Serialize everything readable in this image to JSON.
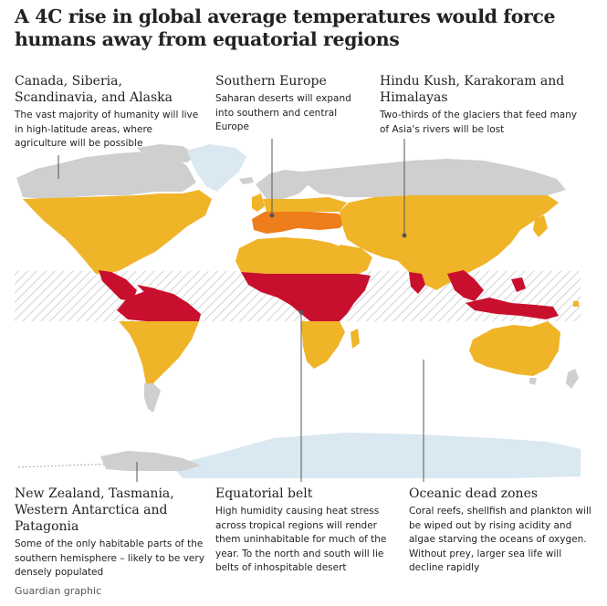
{
  "title": "A 4C rise in global average temperatures would force humans away from equatorial regions",
  "annotations": {
    "north_high_latitudes": {
      "heading": "Canada, Siberia, Scandinavia, and Alaska",
      "body": "The vast majority of humanity will live in high-latitude areas, where agriculture will be possible"
    },
    "southern_europe": {
      "heading": "Southern Europe",
      "body": "Saharan deserts will expand into southern and central Europe"
    },
    "himalayas": {
      "heading": "Hindu Kush, Karakoram and Himalayas",
      "body": "Two-thirds of the glaciers that feed many of Asia's rivers will be lost"
    },
    "southern_refuges": {
      "heading": "New Zealand, Tasmania, Western Antarctica and Patagonia",
      "body": "Some of the only habitable parts of the southern hemisphere – likely to be very densely populated"
    },
    "equatorial_belt": {
      "heading": "Equatorial belt",
      "body": "High humidity causing heat stress across tropical regions will render them uninhabitable for much of the year. To the north and south will lie belts of inhospitable desert"
    },
    "oceanic_dead_zones": {
      "heading": "Oceanic dead zones",
      "body": "Coral reefs, shellfish and plankton will be wiped out by rising acidity and algae starving the oceans of oxygen. Without prey, larger sea life will decline rapidly"
    }
  },
  "credit": "Guardian graphic",
  "colors": {
    "habitable_land": "#cfcfcf",
    "desert_belt": "#f0b429",
    "uninhabitable": "#c8102e",
    "southern_europe_desert": "#ee7d1c",
    "ice": "#d9e8f1",
    "equatorial_hatch": "#d8d8d8",
    "leader_line": "#555555"
  }
}
